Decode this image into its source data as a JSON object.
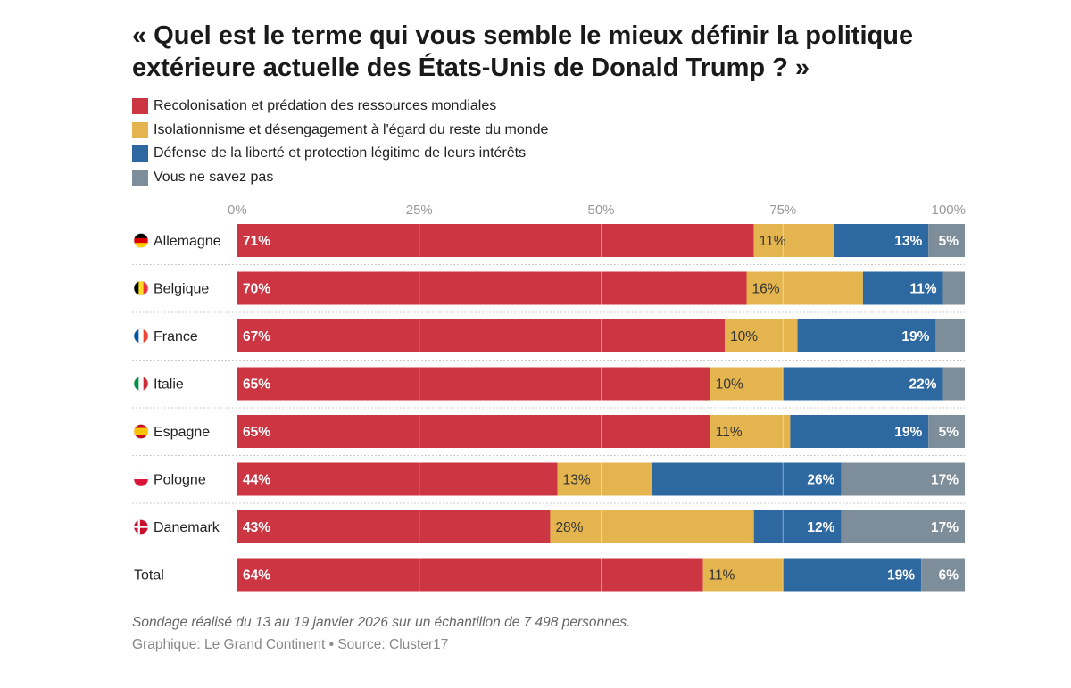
{
  "title": "« Quel est le terme qui vous semble le mieux définir la politique extérieure actuelle des États-Unis de Donald Trump ? »",
  "note": "Sondage réalisé du 13 au 19 janvier 2026 sur un échantillon de 7 498 personnes.",
  "source": "Graphique: Le Grand Continent • Source: Cluster17",
  "chart_data": {
    "type": "bar",
    "orientation": "horizontal",
    "stacked": true,
    "title": "« Quel est le terme qui vous semble le mieux définir la politique extérieure actuelle des États-Unis de Donald Trump ? »",
    "xlim": [
      0,
      100
    ],
    "ticks": [
      "0%",
      "25%",
      "50%",
      "75%",
      "100%"
    ],
    "grid": true,
    "legend_position": "top-left",
    "categories": [
      "Allemagne",
      "Belgique",
      "France",
      "Italie",
      "Espagne",
      "Pologne",
      "Danemark",
      "Total"
    ],
    "flags": [
      "de",
      "be",
      "fr",
      "it",
      "es",
      "pl",
      "dk",
      null
    ],
    "series": [
      {
        "name": "Recolonisation et prédation des ressources mondiales",
        "color": "#cc3542",
        "values": [
          71,
          70,
          67,
          65,
          65,
          44,
          43,
          64
        ],
        "labels": [
          "71%",
          "70%",
          "67%",
          "65%",
          "65%",
          "44%",
          "43%",
          "64%"
        ]
      },
      {
        "name": "Isolationnisme et désengagement à l'égard du reste du monde",
        "color": "#e4b54e",
        "values": [
          11,
          16,
          10,
          10,
          11,
          13,
          28,
          11
        ],
        "labels": [
          "11%",
          "16%",
          "10%",
          "10%",
          "11%",
          "13%",
          "28%",
          "11%"
        ]
      },
      {
        "name": "Défense de la liberté et protection légitime de leurs intérêts",
        "color": "#2e68a1",
        "values": [
          13,
          11,
          19,
          22,
          19,
          26,
          12,
          19
        ],
        "labels": [
          "13%",
          "11%",
          "19%",
          "22%",
          "19%",
          "26%",
          "12%",
          "19%"
        ]
      },
      {
        "name": "Vous ne savez pas",
        "color": "#7d8e9a",
        "values": [
          5,
          3,
          4,
          3,
          5,
          17,
          17,
          6
        ],
        "labels": [
          "5%",
          "",
          "",
          "",
          "5%",
          "17%",
          "17%",
          "6%"
        ]
      }
    ]
  }
}
